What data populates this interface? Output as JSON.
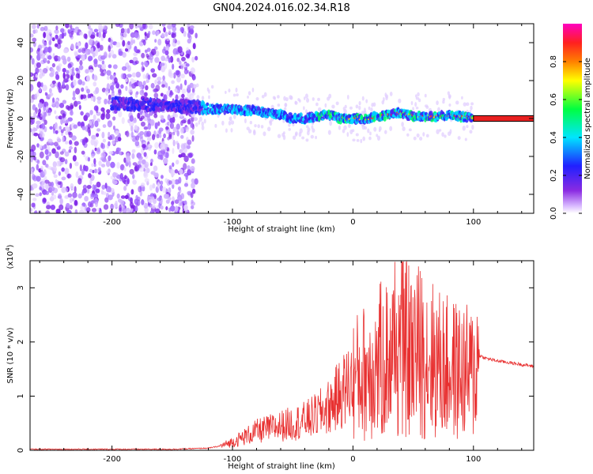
{
  "figure_title": "GN04.2024.016.02.34.R18",
  "chart_data": [
    {
      "type": "heatmap",
      "title": "GN04.2024.016.02.34.R18",
      "xlabel": "Height of straight line (km)",
      "ylabel": "Frequency (Hz)",
      "xlim": [
        -268,
        150
      ],
      "ylim": [
        -50,
        50
      ],
      "x_ticks": [
        -200,
        -100,
        0,
        100
      ],
      "y_ticks": [
        -40,
        -20,
        0,
        20,
        40
      ],
      "x_tick_labels": [
        "-200",
        "-100",
        "0",
        "100"
      ],
      "y_tick_labels": [
        "-40",
        "-20",
        "0",
        "20",
        "40"
      ],
      "grid": false,
      "colorbar": {
        "label": "Normalized spectral amplitude",
        "range": [
          0,
          1
        ],
        "ticks": [
          0.0,
          0.2,
          0.4,
          0.6,
          0.8
        ],
        "tick_labels": [
          "0.0",
          "0.2",
          "0.4",
          "0.6",
          "0.8"
        ],
        "colors": [
          "#ffffff",
          "#d8b8ff",
          "#8a2be2",
          "#2020ff",
          "#00e5ff",
          "#00ff40",
          "#ffff00",
          "#ff8000",
          "#ff2020",
          "#ff00c0"
        ]
      },
      "ridge": {
        "x": [
          -268,
          -250,
          -200,
          -150,
          -130,
          -120,
          -100,
          -80,
          -60,
          -50,
          -40,
          -30,
          -20,
          -10,
          0,
          10,
          20,
          30,
          40,
          50,
          60,
          70,
          80,
          90,
          100,
          150
        ],
        "y": [
          8,
          10,
          8,
          7,
          6,
          5,
          5,
          4,
          2,
          0,
          0,
          1,
          2,
          0,
          0,
          0,
          1,
          2,
          3,
          1,
          1,
          1,
          2,
          1,
          0,
          0
        ]
      },
      "noise_region_end": -130
    },
    {
      "type": "line",
      "title": "",
      "xlabel": "Height of straight line (km)",
      "ylabel": "SNR (10 * v/v)",
      "y_multiplier_label": "(x10",
      "y_multiplier_exp": "4",
      "xlim": [
        -268,
        150
      ],
      "ylim": [
        0,
        3.5
      ],
      "x_ticks": [
        -200,
        -100,
        0,
        100
      ],
      "y_ticks": [
        0,
        1,
        2,
        3
      ],
      "x_tick_labels": [
        "-200",
        "-100",
        "0",
        "100"
      ],
      "y_tick_labels": [
        "0",
        "1",
        "2",
        "3"
      ],
      "grid": false,
      "color": "#e83030",
      "series": [
        {
          "x": [
            -268,
            -250,
            -200,
            -150,
            -120,
            -110,
            -100,
            -90,
            -80,
            -70,
            -60,
            -50,
            -40,
            -30,
            -20,
            -10,
            0,
            10,
            20,
            30,
            40,
            50,
            60,
            70,
            80,
            90,
            100,
            105,
            110,
            120,
            150
          ],
          "y": [
            0.02,
            0.02,
            0.02,
            0.02,
            0.04,
            0.08,
            0.15,
            0.25,
            0.35,
            0.4,
            0.45,
            0.5,
            0.55,
            0.65,
            0.8,
            1.05,
            1.3,
            1.45,
            1.6,
            1.75,
            1.9,
            1.85,
            1.8,
            1.6,
            1.5,
            1.45,
            1.4,
            1.75,
            1.7,
            1.65,
            1.55
          ]
        }
      ]
    }
  ]
}
